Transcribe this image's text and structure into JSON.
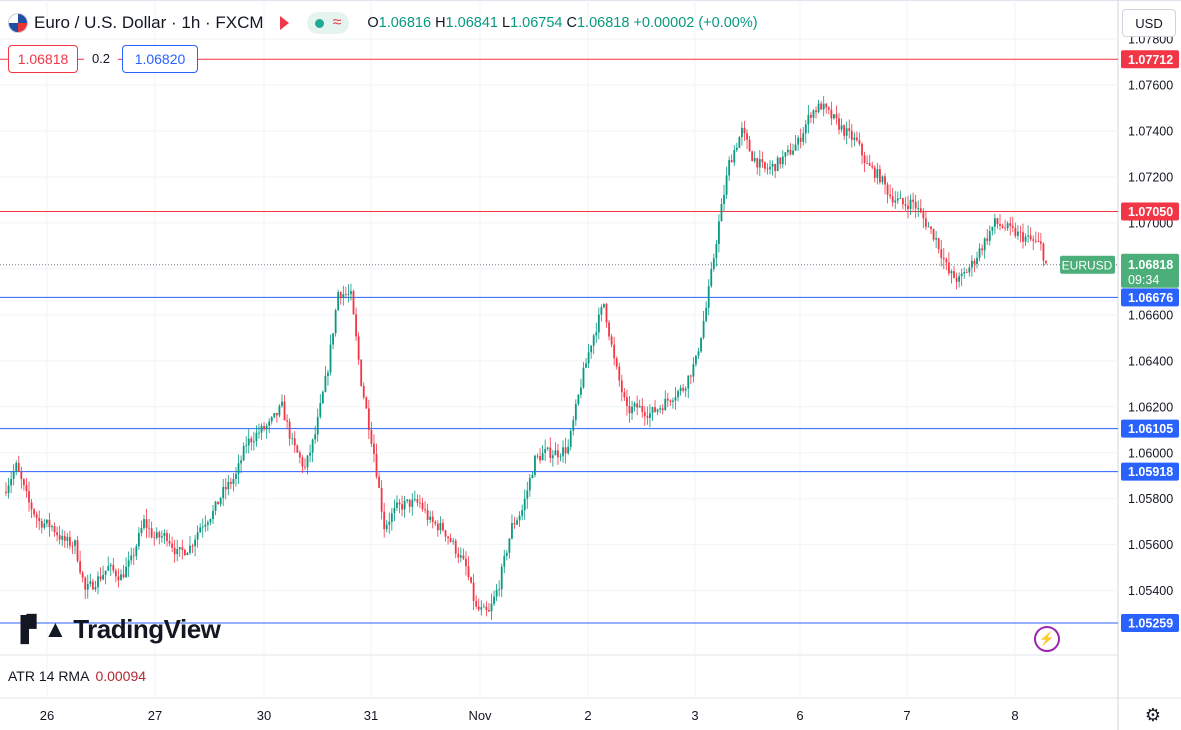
{
  "header": {
    "symbol": "Euro / U.S. Dollar · 1h · FXCM",
    "ohlc": {
      "o": "1.06816",
      "h": "1.06841",
      "l": "1.06754",
      "c": "1.06818",
      "chg": "+0.00002 (+0.00%)"
    }
  },
  "trade": {
    "sell": "1.06818",
    "spread": "0.2",
    "buy": "1.06820"
  },
  "currency": "USD",
  "branding": "TradingView",
  "indicator": {
    "name": "ATR 14 RMA",
    "value": "0.00094"
  },
  "icons": [
    "flag-icon",
    "alert-bell-icon",
    "status-dot-icon",
    "wave-icon",
    "tradingview-logo-icon",
    "lightning-icon",
    "settings-gear-icon"
  ],
  "colors": {
    "up": "#089981",
    "down": "#f23645",
    "resistance": "#f23645",
    "support": "#2962ff",
    "price_tag": "#4caf7a"
  },
  "chart_data": {
    "type": "candlestick",
    "symbol": "EURUSD",
    "timeframe": "1h",
    "y_ticks": [
      "1.05400",
      "1.05600",
      "1.05800",
      "1.06000",
      "1.06200",
      "1.06400",
      "1.06600",
      "1.06800",
      "1.07000",
      "1.07200",
      "1.07400",
      "1.07600",
      "1.07800"
    ],
    "ylim": [
      1.0512,
      1.0797
    ],
    "x_ticks": [
      "26",
      "27",
      "30",
      "31",
      "Nov",
      "2",
      "3",
      "6",
      "7",
      "8"
    ],
    "horizontal_lines": [
      {
        "value": 1.07712,
        "label": "1.07712",
        "kind": "resistance"
      },
      {
        "value": 1.0705,
        "label": "1.07050",
        "kind": "resistance"
      },
      {
        "value": 1.06676,
        "label": "1.06676",
        "kind": "support"
      },
      {
        "value": 1.06105,
        "label": "1.06105",
        "kind": "support"
      },
      {
        "value": 1.05918,
        "label": "1.05918",
        "kind": "support"
      },
      {
        "value": 1.05259,
        "label": "1.05259",
        "kind": "support"
      }
    ],
    "last_price": {
      "symbol": "EURUSD",
      "value": "1.06818",
      "countdown": "09:34"
    },
    "close_path": [
      [
        0,
        1.0585
      ],
      [
        4,
        1.0594
      ],
      [
        9,
        1.0578
      ],
      [
        13,
        1.057
      ],
      [
        18,
        1.0568
      ],
      [
        22,
        1.0562
      ],
      [
        27,
        1.056
      ],
      [
        31,
        1.054
      ],
      [
        36,
        1.0545
      ],
      [
        40,
        1.055
      ],
      [
        45,
        1.0546
      ],
      [
        49,
        1.0553
      ],
      [
        54,
        1.057
      ],
      [
        58,
        1.0563
      ],
      [
        63,
        1.0564
      ],
      [
        67,
        1.0556
      ],
      [
        72,
        1.0559
      ],
      [
        76,
        1.0568
      ],
      [
        81,
        1.0574
      ],
      [
        85,
        1.0583
      ],
      [
        90,
        1.059
      ],
      [
        94,
        1.0604
      ],
      [
        99,
        1.0609
      ],
      [
        103,
        1.0612
      ],
      [
        108,
        1.062
      ],
      [
        112,
        1.0604
      ],
      [
        117,
        1.0593
      ],
      [
        121,
        1.0608
      ],
      [
        126,
        1.0637
      ],
      [
        130,
        1.067
      ],
      [
        135,
        1.0668
      ],
      [
        139,
        1.0631
      ],
      [
        144,
        1.06
      ],
      [
        148,
        1.0568
      ],
      [
        153,
        1.0576
      ],
      [
        157,
        1.0578
      ],
      [
        162,
        1.0578
      ],
      [
        166,
        1.057
      ],
      [
        171,
        1.0567
      ],
      [
        175,
        1.056
      ],
      [
        180,
        1.055
      ],
      [
        184,
        1.0532
      ],
      [
        189,
        1.053
      ],
      [
        193,
        1.0543
      ],
      [
        198,
        1.0568
      ],
      [
        202,
        1.0575
      ],
      [
        207,
        1.0597
      ],
      [
        211,
        1.06
      ],
      [
        216,
        1.06
      ],
      [
        220,
        1.0602
      ],
      [
        225,
        1.063
      ],
      [
        229,
        1.0648
      ],
      [
        234,
        1.0665
      ],
      [
        238,
        1.064
      ],
      [
        243,
        1.0618
      ],
      [
        247,
        1.062
      ],
      [
        252,
        1.0617
      ],
      [
        256,
        1.062
      ],
      [
        261,
        1.0625
      ],
      [
        265,
        1.0628
      ],
      [
        270,
        1.064
      ],
      [
        274,
        1.0663
      ],
      [
        279,
        1.07
      ],
      [
        283,
        1.0726
      ],
      [
        288,
        1.074
      ],
      [
        292,
        1.0729
      ],
      [
        297,
        1.0723
      ],
      [
        301,
        1.0725
      ],
      [
        306,
        1.073
      ],
      [
        310,
        1.0735
      ],
      [
        315,
        1.0748
      ],
      [
        319,
        1.0751
      ],
      [
        324,
        1.0745
      ],
      [
        328,
        1.074
      ],
      [
        333,
        1.0735
      ],
      [
        337,
        1.0725
      ],
      [
        342,
        1.072
      ],
      [
        346,
        1.0712
      ],
      [
        351,
        1.0708
      ],
      [
        355,
        1.0709
      ],
      [
        360,
        1.07
      ],
      [
        364,
        1.0693
      ],
      [
        369,
        1.0678
      ],
      [
        373,
        1.0675
      ],
      [
        378,
        1.0682
      ],
      [
        382,
        1.069
      ],
      [
        387,
        1.07
      ],
      [
        391,
        1.0698
      ],
      [
        396,
        1.0695
      ],
      [
        400,
        1.0693
      ],
      [
        405,
        1.069
      ],
      [
        407,
        1.0682
      ]
    ]
  }
}
